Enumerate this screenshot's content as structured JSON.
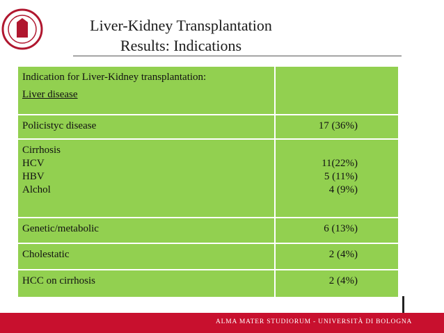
{
  "header": {
    "title": [
      "Liver-Kidney Transplantation",
      "Results: Indications"
    ]
  },
  "table": {
    "rows": [
      {
        "label": [
          "Indication for Liver-Kidney transplantation:",
          "Liver disease"
        ]
      },
      {
        "label": [
          "Policistyc disease"
        ],
        "value": [
          "17 (36%)"
        ]
      },
      {
        "label": [
          "Cirrhosis",
          "HCV",
          "HBV",
          "Alchol"
        ],
        "value": [
          "11(22%)",
          "5 (11%)",
          "4 (9%)"
        ]
      },
      {
        "label": [
          "Genetic/metabolic"
        ],
        "value": [
          "6 (13%)"
        ]
      },
      {
        "label": [
          "Cholestatic"
        ],
        "value": [
          "2 (4%)"
        ]
      },
      {
        "label": [
          "HCC on cirrhosis"
        ],
        "value": [
          "2 (4%)"
        ]
      }
    ]
  },
  "footer": {
    "text": "ALMA MATER STUDIORUM - UNIVERSITÀ DI BOLOGNA"
  }
}
